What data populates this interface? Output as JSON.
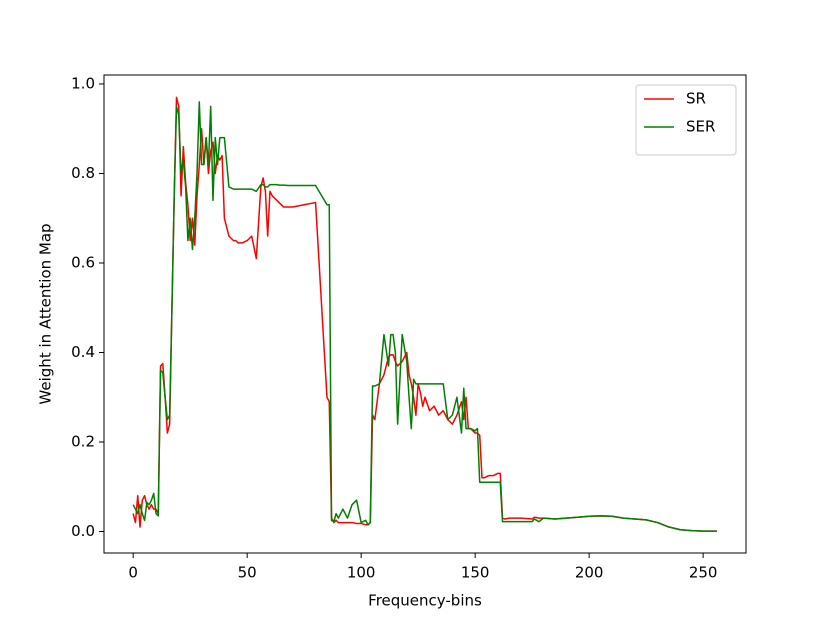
{
  "chart_data": {
    "type": "line",
    "xlabel": "Frequency-bins",
    "ylabel": "Weight in Attention Map",
    "x": [
      0,
      1,
      2,
      3,
      4,
      5,
      6,
      7,
      8,
      9,
      10,
      11,
      12,
      13,
      14,
      15,
      16,
      17,
      18,
      19,
      20,
      21,
      22,
      23,
      24,
      25,
      26,
      27,
      28,
      29,
      30,
      31,
      32,
      33,
      34,
      35,
      36,
      37,
      38,
      39,
      40,
      42,
      44,
      45,
      46,
      48,
      50,
      52,
      54,
      56,
      57,
      58,
      59,
      60,
      61,
      62,
      63,
      64,
      66,
      68,
      70,
      75,
      80,
      85,
      86,
      87,
      88,
      89,
      90,
      92,
      94,
      96,
      98,
      100,
      102,
      103,
      104,
      105,
      106,
      108,
      110,
      112,
      113,
      114,
      115,
      116,
      118,
      120,
      121,
      122,
      123,
      124,
      125,
      126,
      127,
      128,
      130,
      132,
      134,
      136,
      138,
      140,
      142,
      144,
      145,
      146,
      147,
      148,
      150,
      151,
      152,
      153,
      154,
      156,
      158,
      160,
      161,
      162,
      163,
      165,
      170,
      175,
      176,
      178,
      180,
      185,
      190,
      195,
      200,
      205,
      210,
      215,
      220,
      225,
      230,
      235,
      240,
      245,
      250,
      256
    ],
    "series": [
      {
        "name": "SR",
        "color": "#ff0000",
        "values": [
          0.04,
          0.02,
          0.08,
          0.01,
          0.07,
          0.08,
          0.06,
          0.05,
          0.06,
          0.05,
          0.05,
          0.04,
          0.37,
          0.375,
          0.3,
          0.22,
          0.24,
          0.5,
          0.75,
          0.97,
          0.95,
          0.75,
          0.86,
          0.78,
          0.73,
          0.65,
          0.7,
          0.64,
          0.75,
          0.82,
          0.9,
          0.82,
          0.88,
          0.8,
          0.85,
          0.87,
          0.8,
          0.84,
          0.83,
          0.84,
          0.7,
          0.66,
          0.65,
          0.65,
          0.645,
          0.645,
          0.65,
          0.66,
          0.61,
          0.77,
          0.79,
          0.76,
          0.66,
          0.76,
          0.75,
          0.745,
          0.74,
          0.735,
          0.725,
          0.725,
          0.725,
          0.73,
          0.735,
          0.3,
          0.29,
          0.03,
          0.02,
          0.025,
          0.02,
          0.02,
          0.02,
          0.02,
          0.018,
          0.018,
          0.015,
          0.015,
          0.02,
          0.26,
          0.25,
          0.33,
          0.35,
          0.39,
          0.395,
          0.395,
          0.38,
          0.37,
          0.38,
          0.4,
          0.35,
          0.33,
          0.3,
          0.26,
          0.33,
          0.31,
          0.28,
          0.3,
          0.27,
          0.28,
          0.26,
          0.27,
          0.25,
          0.24,
          0.26,
          0.29,
          0.25,
          0.3,
          0.23,
          0.23,
          0.22,
          0.22,
          0.215,
          0.12,
          0.12,
          0.125,
          0.125,
          0.13,
          0.13,
          0.03,
          0.028,
          0.03,
          0.03,
          0.028,
          0.032,
          0.03,
          0.03,
          0.028,
          0.03,
          0.032,
          0.034,
          0.035,
          0.034,
          0.03,
          0.028,
          0.026,
          0.02,
          0.01,
          0.004,
          0.002,
          0.001,
          0.001
        ]
      },
      {
        "name": "SER",
        "color": "#008000",
        "values": [
          0.06,
          0.05,
          0.04,
          0.06,
          0.04,
          0.025,
          0.065,
          0.06,
          0.07,
          0.085,
          0.04,
          0.035,
          0.36,
          0.355,
          0.3,
          0.25,
          0.26,
          0.5,
          0.75,
          0.95,
          0.93,
          0.8,
          0.83,
          0.77,
          0.65,
          0.7,
          0.63,
          0.7,
          0.8,
          0.96,
          0.82,
          0.82,
          0.88,
          0.82,
          0.95,
          0.74,
          0.88,
          0.82,
          0.88,
          0.88,
          0.88,
          0.77,
          0.765,
          0.765,
          0.765,
          0.765,
          0.765,
          0.765,
          0.76,
          0.775,
          0.775,
          0.77,
          0.77,
          0.775,
          0.775,
          0.775,
          0.775,
          0.774,
          0.774,
          0.773,
          0.773,
          0.773,
          0.773,
          0.73,
          0.73,
          0.025,
          0.022,
          0.04,
          0.03,
          0.05,
          0.03,
          0.06,
          0.07,
          0.02,
          0.025,
          0.015,
          0.02,
          0.325,
          0.325,
          0.33,
          0.44,
          0.37,
          0.44,
          0.44,
          0.4,
          0.24,
          0.44,
          0.38,
          0.3,
          0.23,
          0.34,
          0.33,
          0.33,
          0.33,
          0.33,
          0.33,
          0.33,
          0.33,
          0.33,
          0.33,
          0.25,
          0.26,
          0.3,
          0.22,
          0.32,
          0.23,
          0.23,
          0.23,
          0.225,
          0.23,
          0.11,
          0.11,
          0.11,
          0.11,
          0.11,
          0.11,
          0.11,
          0.022,
          0.022,
          0.022,
          0.022,
          0.022,
          0.028,
          0.022,
          0.03,
          0.028,
          0.03,
          0.032,
          0.034,
          0.035,
          0.034,
          0.03,
          0.028,
          0.026,
          0.02,
          0.01,
          0.004,
          0.002,
          0.001,
          0.001
        ]
      }
    ],
    "xlim": [
      -12.8,
      268.8
    ],
    "ylim": [
      -0.048,
      1.02
    ],
    "xticks": [
      0,
      50,
      100,
      150,
      200,
      250
    ],
    "yticks": [
      {
        "value": 0,
        "label": "0.0"
      },
      0.2,
      0.4,
      0.6,
      0.8,
      {
        "value": 1,
        "label": "1.0"
      }
    ],
    "legend": "upper right"
  }
}
